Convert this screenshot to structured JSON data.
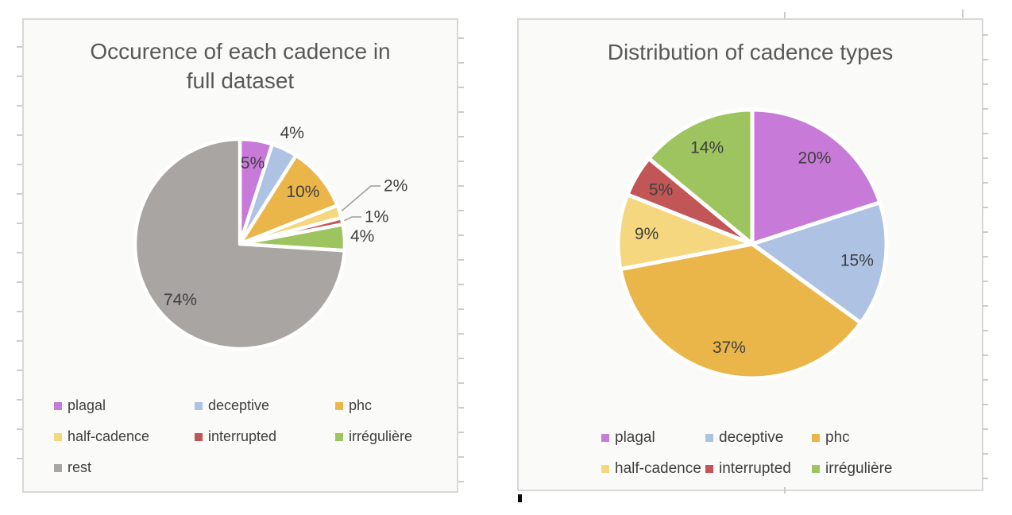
{
  "page": {
    "background": "#ffffff",
    "panel_background": "#fafaf9",
    "panel_border_color": "#d8d8d8",
    "title_color": "#595959",
    "label_color": "#3f3f3f"
  },
  "chart_data": [
    {
      "type": "pie",
      "title": "Occurence of each cadence in full dataset",
      "title_display": "Occurence of each cadence in\nfull dataset",
      "categories": [
        "plagal",
        "deceptive",
        "phc",
        "half-cadence",
        "interrupted",
        "irrégulière",
        "rest"
      ],
      "values": [
        5,
        4,
        10,
        2,
        1,
        4,
        74
      ],
      "labels": [
        "5%",
        "4%",
        "10%",
        "2%",
        "1%",
        "4%",
        "74%"
      ],
      "label_placement": [
        "inside",
        "outside",
        "inside",
        "leader",
        "leader",
        "outside",
        "inside"
      ],
      "slice_colors": [
        "#c87ad8",
        "#aec3e4",
        "#ebb649",
        "#f4d77e",
        "#c25556",
        "#9dc45e",
        "#a8a5a3"
      ],
      "start_angle_deg": 0,
      "direction": "clockwise",
      "legend_position": "bottom",
      "legend_columns": 3
    },
    {
      "type": "pie",
      "title": "Distribution of cadence types",
      "title_display": "Distribution of cadence types",
      "categories": [
        "plagal",
        "deceptive",
        "phc",
        "half-cadence",
        "interrupted",
        "irrégulière"
      ],
      "values": [
        20,
        15,
        37,
        9,
        5,
        14
      ],
      "labels": [
        "20%",
        "15%",
        "37%",
        "9%",
        "5%",
        "14%"
      ],
      "label_placement": [
        "inside",
        "inside",
        "inside",
        "inside",
        "inside",
        "inside"
      ],
      "slice_colors": [
        "#c87ad8",
        "#aec3e4",
        "#ebb649",
        "#f4d77e",
        "#c25556",
        "#9dc45e"
      ],
      "start_angle_deg": 0,
      "direction": "clockwise",
      "legend_position": "bottom",
      "legend_columns": 3
    }
  ]
}
